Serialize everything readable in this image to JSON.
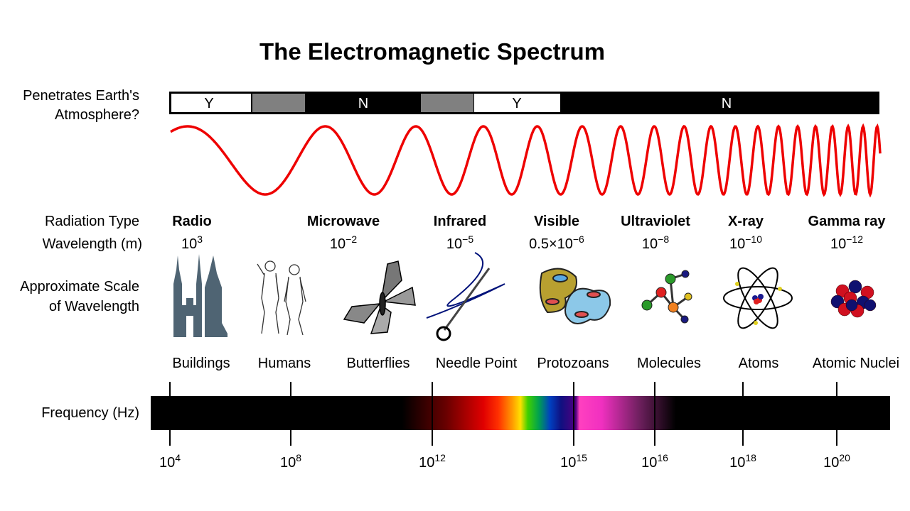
{
  "title": "The Electromagnetic Spectrum",
  "row_labels": {
    "atmosphere": [
      "Penetrates Earth's",
      "Atmosphere?"
    ],
    "radiation_type": "Radiation Type",
    "wavelength": "Wavelength (m)",
    "scale": [
      "Approximate Scale",
      "of Wavelength"
    ],
    "frequency": "Frequency (Hz)"
  },
  "atmosphere_bar": [
    "Y",
    "N",
    "Y",
    "N"
  ],
  "radiation_types": [
    {
      "name": "Radio",
      "wavelength": {
        "mantissa": "10",
        "exponent": "3"
      }
    },
    {
      "name": "Microwave",
      "wavelength": {
        "mantissa": "10",
        "exponent": "−2"
      }
    },
    {
      "name": "Infrared",
      "wavelength": {
        "mantissa": "10",
        "exponent": "−5"
      }
    },
    {
      "name": "Visible",
      "wavelength": {
        "mantissa": "0.5×10",
        "exponent": "−6"
      }
    },
    {
      "name": "Ultraviolet",
      "wavelength": {
        "mantissa": "10",
        "exponent": "−8"
      }
    },
    {
      "name": "X-ray",
      "wavelength": {
        "mantissa": "10",
        "exponent": "−10"
      }
    },
    {
      "name": "Gamma ray",
      "wavelength": {
        "mantissa": "10",
        "exponent": "−12"
      }
    }
  ],
  "scale_labels": [
    "Buildings",
    "Humans",
    "Butterflies",
    "Needle Point",
    "Protozoans",
    "Molecules",
    "Atoms",
    "Atomic Nuclei"
  ],
  "frequency_ticks": [
    {
      "base": "10",
      "exponent": "4"
    },
    {
      "base": "10",
      "exponent": "8"
    },
    {
      "base": "10",
      "exponent": "12"
    },
    {
      "base": "10",
      "exponent": "15"
    },
    {
      "base": "10",
      "exponent": "16"
    },
    {
      "base": "10",
      "exponent": "18"
    },
    {
      "base": "10",
      "exponent": "20"
    }
  ]
}
